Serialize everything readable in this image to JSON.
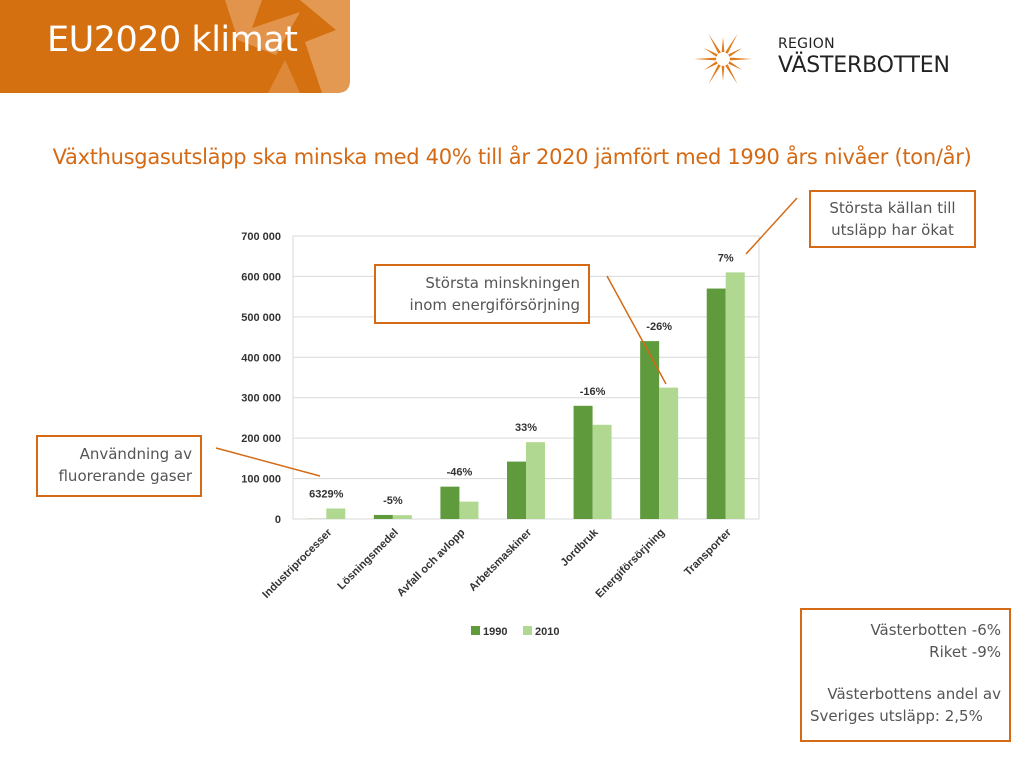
{
  "header": {
    "title": "EU2020 klimat",
    "colors": {
      "band": "#d4700f",
      "band_light": "#e49a57"
    }
  },
  "logo": {
    "line1": "REGION",
    "line2": "VÄSTERBOTTEN",
    "icon": "star-burst-logo-icon",
    "color": "#e07c1c"
  },
  "subtitle": "Växthusgasutsläpp ska minska med 40% till år 2020 jämfört med 1990 års nivåer (ton/år)",
  "callouts": {
    "largest_source": [
      "Största källan till",
      "utsläpp har ökat"
    ],
    "largest_decrease": [
      "Största minskningen",
      "inom energiförsörjning"
    ],
    "fluorinated": [
      "Användning av",
      "fluorerande gaser"
    ],
    "summary": {
      "line1": "Västerbotten -6%",
      "line2": "Riket -9%",
      "line3": "Västerbottens andel av",
      "line4": "Sveriges utsläpp: 2,5%"
    }
  },
  "chart_data": {
    "type": "bar",
    "categories": [
      "Industriprocesser",
      "Lösningsmedel",
      "Avfall och avlopp",
      "Arbetsmaskiner",
      "Jordbruk",
      "Energiförsörjning",
      "Transporter"
    ],
    "series": [
      {
        "name": "1990",
        "color": "#5f9a3c",
        "values": [
          400,
          10000,
          80000,
          142000,
          280000,
          440000,
          570000
        ]
      },
      {
        "name": "2010",
        "color": "#b0d890",
        "values": [
          26000,
          9500,
          43000,
          190000,
          233000,
          325000,
          610000
        ]
      }
    ],
    "data_labels": [
      "6329%",
      "-5%",
      "-46%",
      "33%",
      "-16%",
      "-26%",
      "7%"
    ],
    "y_ticks": [
      "0",
      "100 000",
      "200 000",
      "300 000",
      "400 000",
      "500 000",
      "600 000",
      "700 000"
    ],
    "ylim": [
      0,
      700000
    ],
    "grid": true,
    "legend": "bottom-center"
  }
}
